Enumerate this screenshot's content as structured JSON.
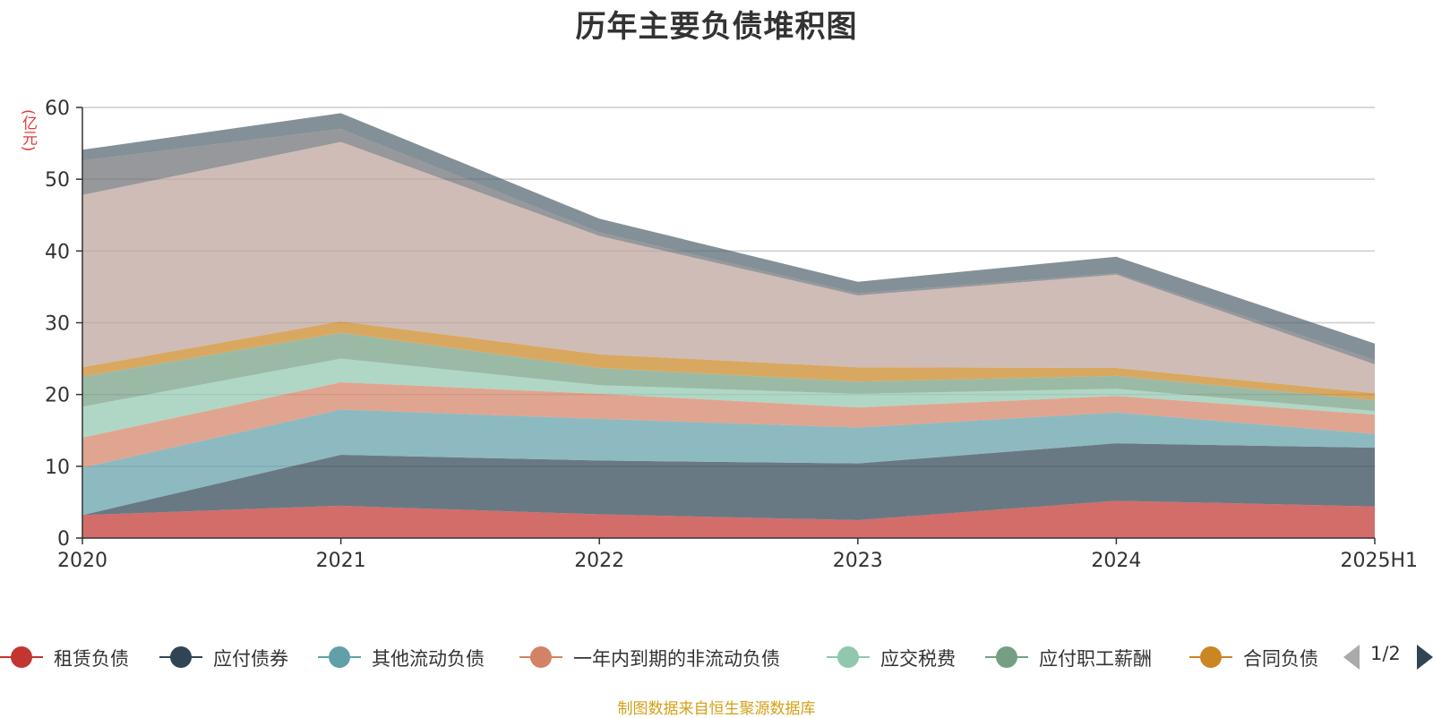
{
  "title": "历年主要负债堆积图",
  "unit": "(亿元)",
  "footer": "制图数据来自恒生聚源数据库",
  "pager": {
    "text": "1/2"
  },
  "legend": [
    {
      "label": "租赁负债",
      "color": "#c23531"
    },
    {
      "label": "应付债券",
      "color": "#2f4554"
    },
    {
      "label": "其他流动负债",
      "color": "#61a0a8"
    },
    {
      "label": "一年内到期的非流动负债",
      "color": "#d48265"
    },
    {
      "label": "应交税费",
      "color": "#91c7ae"
    },
    {
      "label": "应付职工薪酬",
      "color": "#749f83"
    },
    {
      "label": "合同负债",
      "color": "#ca8622"
    }
  ],
  "chart_data": {
    "type": "area",
    "stacked": true,
    "title": "历年主要负债堆积图",
    "ylabel": "(亿元)",
    "categories": [
      "2020",
      "2021",
      "2022",
      "2023",
      "2024",
      "2025H1"
    ],
    "ylim": [
      0,
      60
    ],
    "yticks": [
      0,
      10,
      20,
      30,
      40,
      50,
      60
    ],
    "grid": true,
    "legend_position": "bottom",
    "series": [
      {
        "name": "租赁负债",
        "color": "#c23531",
        "values": [
          3.2,
          4.5,
          3.3,
          2.5,
          5.2,
          4.4
        ]
      },
      {
        "name": "应付债券",
        "color": "#2f4554",
        "values": [
          0.0,
          7.1,
          7.5,
          7.9,
          8.0,
          8.2
        ]
      },
      {
        "name": "其他流动负债",
        "color": "#61a0a8",
        "values": [
          6.6,
          6.3,
          5.8,
          5.0,
          4.3,
          1.9
        ]
      },
      {
        "name": "一年内到期的非流动负债",
        "color": "#d48265",
        "values": [
          4.2,
          3.8,
          3.5,
          2.8,
          2.3,
          2.7
        ]
      },
      {
        "name": "应交税费",
        "color": "#91c7ae",
        "values": [
          4.3,
          3.3,
          1.2,
          1.9,
          1.0,
          0.5
        ]
      },
      {
        "name": "应付职工薪酬",
        "color": "#749f83",
        "values": [
          4.2,
          3.6,
          2.4,
          1.7,
          1.8,
          1.5
        ]
      },
      {
        "name": "合同负债",
        "color": "#ca8622",
        "values": [
          1.3,
          1.6,
          1.9,
          2.0,
          1.1,
          1.0
        ]
      },
      {
        "color": "#bda29a",
        "values": [
          24.0,
          25.0,
          16.5,
          10.0,
          13.0,
          4.0
        ]
      },
      {
        "color": "#6e7074",
        "values": [
          4.8,
          1.8,
          0.5,
          0.3,
          0.2,
          0.6
        ]
      },
      {
        "color": "#546570",
        "values": [
          1.5,
          2.2,
          1.9,
          1.6,
          2.3,
          2.3
        ]
      }
    ]
  }
}
